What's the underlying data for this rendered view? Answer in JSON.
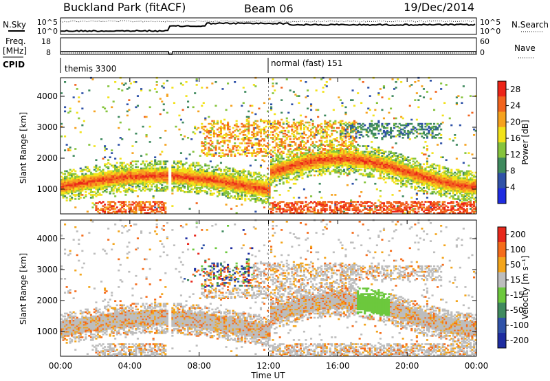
{
  "header": {
    "station": "Buckland Park (fitACF)",
    "beam": "Beam 06",
    "date": "19/Dec/2014"
  },
  "side_labels": {
    "nsky": "N.Sky",
    "nsearch": "N.Search",
    "freq": "Freq.",
    "freq_unit": "[MHz]",
    "nave": "Nave",
    "cpid": "CPID"
  },
  "noise_panel": {
    "left_ticks": [
      "10^5",
      "10^0"
    ],
    "right_ticks": [
      "10^5",
      "10^0"
    ]
  },
  "freq_panel": {
    "left_ticks": [
      "18",
      "8"
    ],
    "right_ticks": [
      "60",
      "0"
    ]
  },
  "cpid_panel": {
    "modes": [
      {
        "label": "themis 3300",
        "start_hour": 0
      },
      {
        "label": "normal (fast) 151",
        "start_hour": 12
      }
    ]
  },
  "chart_data": [
    {
      "type": "heatmap",
      "ylabel": "Slant Range [km]",
      "xlabel": "",
      "xlim": [
        0,
        24
      ],
      "ylim": [
        200,
        4600
      ],
      "yticks": [
        "1000",
        "2000",
        "3000",
        "4000"
      ],
      "colorbar": {
        "label": "Power [dB]",
        "ticks": [
          "4",
          "8",
          "12",
          "16",
          "20",
          "24",
          "28"
        ],
        "range": [
          0,
          30
        ]
      },
      "colors": [
        "#1e2ce0",
        "#2f52a8",
        "#3f8a5e",
        "#86c43d",
        "#f2e21a",
        "#f6a21e",
        "#f2641e",
        "#ec2418"
      ]
    },
    {
      "type": "heatmap",
      "ylabel": "Slant Range [km]",
      "xlabel": "Time UT",
      "xlim": [
        0,
        24
      ],
      "ylim": [
        200,
        4600
      ],
      "yticks": [
        "1000",
        "2000",
        "3000",
        "4000"
      ],
      "colorbar": {
        "label": "Velocity [m s⁻¹]",
        "ticks": [
          "200",
          "100",
          "50",
          "15",
          "-15",
          "-50",
          "-100",
          "-200"
        ]
      },
      "colors": [
        "#1e2ca0",
        "#2f52a8",
        "#3f8a5e",
        "#6cc83d",
        "#bdbdbd",
        "#f3a51c",
        "#f56c1a",
        "#e8281c"
      ]
    }
  ],
  "time_axis": {
    "ticks": [
      "00:00",
      "04:00",
      "08:00",
      "12:00",
      "16:00",
      "20:00",
      "00:00"
    ]
  }
}
